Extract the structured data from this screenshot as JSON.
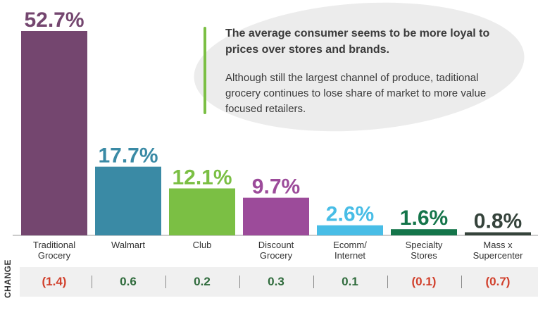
{
  "callout": {
    "headline": "The average consumer seems to be more loyal to prices over stores and brands.",
    "body": "Although still the largest channel of produce, taditional grocery continues to lose share of market to more value focused retailers."
  },
  "chart_data": {
    "type": "bar",
    "categories": [
      [
        "Traditional",
        "Grocery"
      ],
      [
        "Walmart"
      ],
      [
        "Club"
      ],
      [
        "Discount",
        "Grocery"
      ],
      [
        "Ecomm/",
        "Internet"
      ],
      [
        "Specialty",
        "Stores"
      ],
      [
        "Mass x",
        "Supercenter"
      ]
    ],
    "values": [
      52.7,
      17.7,
      12.1,
      9.7,
      2.6,
      1.6,
      0.8
    ],
    "value_labels": [
      "52.7%",
      "17.7%",
      "12.1%",
      "9.7%",
      "2.6%",
      "1.6%",
      "0.8%"
    ],
    "colors": [
      "#74466f",
      "#3a8aa5",
      "#7bbf44",
      "#9c4b9a",
      "#48bde6",
      "#14754a",
      "#35433b"
    ],
    "ylim": [
      0,
      52.7
    ],
    "change_label": "CHANGE",
    "changes": [
      "(1.4)",
      "0.6",
      "0.2",
      "0.3",
      "0.1",
      "(0.1)",
      "(0.7)"
    ],
    "change_colors": [
      "#d1402c",
      "#2f6b3c",
      "#2f6b3c",
      "#2f6b3c",
      "#2f6b3c",
      "#d1402c",
      "#d1402c"
    ]
  }
}
